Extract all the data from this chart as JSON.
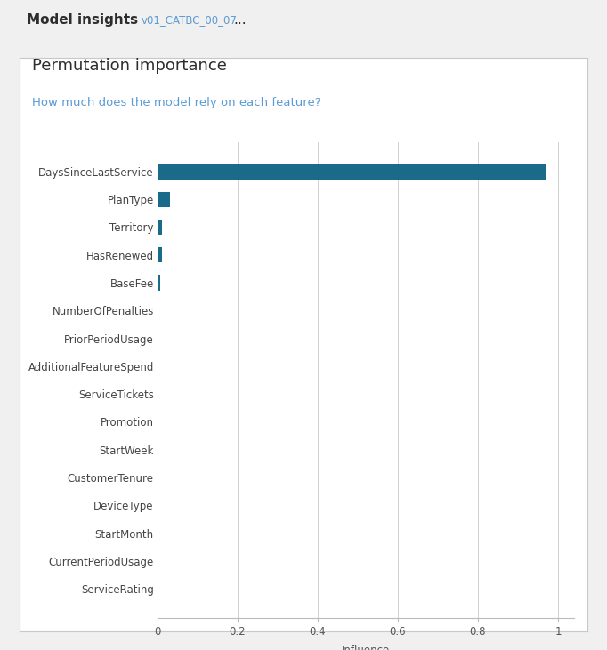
{
  "title": "Permutation importance",
  "subtitle": "How much does the model rely on each feature?",
  "header_title": "Model insights",
  "header_subtitle": "v01_CATBC_00_07",
  "header_dots": "...",
  "xlabel": "Influence",
  "features": [
    "DaysSinceLastService",
    "PlanType",
    "Territory",
    "HasRenewed",
    "BaseFee",
    "NumberOfPenalties",
    "PriorPeriodUsage",
    "AdditionalFeatureSpend",
    "ServiceTickets",
    "Promotion",
    "StartWeek",
    "CustomerTenure",
    "DeviceType",
    "StartMonth",
    "CurrentPeriodUsage",
    "ServiceRating"
  ],
  "values": [
    0.97,
    0.032,
    0.012,
    0.01,
    0.006,
    0.0,
    0.0,
    0.0,
    0.0,
    0.0,
    0.0,
    0.0,
    0.0,
    0.0,
    0.0,
    0.0
  ],
  "bar_color": "#1a6b8a",
  "xlim": [
    0,
    1.04
  ],
  "xticks": [
    0,
    0.2,
    0.4,
    0.6,
    0.8,
    1.0
  ],
  "xtick_labels": [
    "0",
    "0.2",
    "0.4",
    "0.6",
    "0.8",
    "1"
  ],
  "title_color": "#2d2d2d",
  "subtitle_color": "#5b9bd5",
  "background_color": "#ffffff",
  "outer_background": "#f0f0f0",
  "grid_color": "#d0d0d0",
  "title_fontsize": 13,
  "subtitle_fontsize": 9.5,
  "label_fontsize": 8.5,
  "tick_fontsize": 8.5,
  "header_title_fontsize": 11,
  "header_subtitle_fontsize": 8.5
}
